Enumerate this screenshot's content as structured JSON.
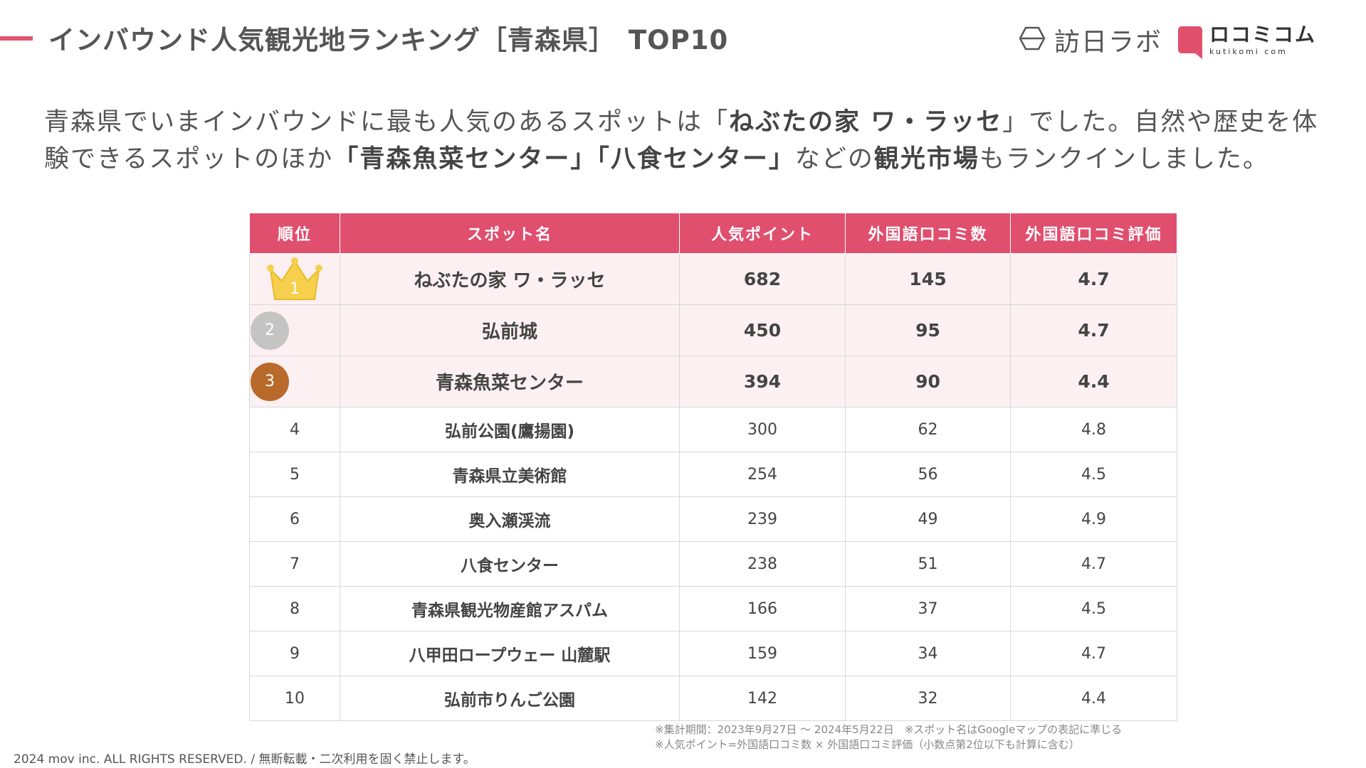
{
  "header": {
    "title_main": "インバウンド人気観光地ランキング［青森県］",
    "title_tail": "TOP10",
    "logo_houni": "訪日ラボ",
    "logo_kuti_jp": "ロコミコム",
    "logo_kuti_en": "kutikomi com",
    "colors": {
      "accent": "#e05570",
      "header_bg": "#e04f6e",
      "top_row_bg": "#fdf0f3"
    }
  },
  "intro": {
    "p1": "青森県でいまインバウンドに最も人気のあるスポットは「",
    "b1": "ねぶたの家 ワ・ラッセ",
    "p2": "」でした。自然や歴史を体験できるスポットのほか",
    "b2": "「青森魚菜センター」「八食センター」",
    "p3": "などの",
    "b3": "観光市場",
    "p4": "もランクインしました。"
  },
  "table": {
    "headers": [
      "順位",
      "スポット名",
      "人気ポイント",
      "外国語口コミ数",
      "外国語口コミ評価"
    ],
    "rows": [
      {
        "rank": "1",
        "spot": "ねぶたの家 ワ・ラッセ",
        "points": "682",
        "reviews": "145",
        "rating": "4.7",
        "badge": "crown-icon"
      },
      {
        "rank": "2",
        "spot": "弘前城",
        "points": "450",
        "reviews": "95",
        "rating": "4.7",
        "badge": "silver-medal-icon"
      },
      {
        "rank": "3",
        "spot": "青森魚菜センター",
        "points": "394",
        "reviews": "90",
        "rating": "4.4",
        "badge": "bronze-medal-icon"
      },
      {
        "rank": "4",
        "spot": "弘前公園(鷹揚園)",
        "points": "300",
        "reviews": "62",
        "rating": "4.8"
      },
      {
        "rank": "5",
        "spot": "青森県立美術館",
        "points": "254",
        "reviews": "56",
        "rating": "4.5"
      },
      {
        "rank": "6",
        "spot": "奥入瀬渓流",
        "points": "239",
        "reviews": "49",
        "rating": "4.9"
      },
      {
        "rank": "7",
        "spot": "八食センター",
        "points": "238",
        "reviews": "51",
        "rating": "4.7"
      },
      {
        "rank": "8",
        "spot": "青森県観光物産館アスパム",
        "points": "166",
        "reviews": "37",
        "rating": "4.5"
      },
      {
        "rank": "9",
        "spot": "八甲田ロープウェー 山麓駅",
        "points": "159",
        "reviews": "34",
        "rating": "4.7"
      },
      {
        "rank": "10",
        "spot": "弘前市りんご公園",
        "points": "142",
        "reviews": "32",
        "rating": "4.4"
      }
    ]
  },
  "notes": {
    "line1": "※集計期間：2023年9月27日 ～ 2024年5月22日　※スポット名はGoogleマップの表記に準じる",
    "line2": "※人気ポイント=外国語口コミ数 × 外国語口コミ評価（小数点第2位以下も計算に含む）"
  },
  "footer": {
    "copyright": "2024 mov inc. ALL RIGHTS RESERVED. / 無断転載・二次利用を固く禁止します。"
  }
}
